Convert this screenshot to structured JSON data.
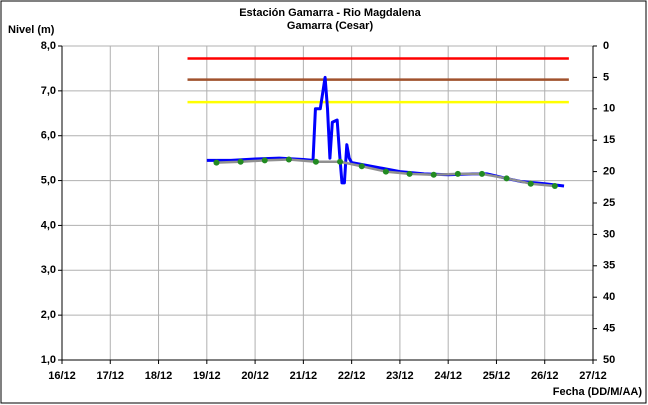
{
  "chart_data": {
    "type": "line",
    "title": "Estación Gamarra - Rio Magdalena",
    "subtitle": "Gamarra (Cesar)",
    "y_label": "Nivel (m)",
    "x_label": "Fecha (DD/M/AA)",
    "xlim": [
      16,
      27
    ],
    "xticks": [
      {
        "value": 16,
        "label": "16/12"
      },
      {
        "value": 17,
        "label": "17/12"
      },
      {
        "value": 18,
        "label": "18/12"
      },
      {
        "value": 19,
        "label": "19/12"
      },
      {
        "value": 20,
        "label": "20/12"
      },
      {
        "value": 21,
        "label": "21/12"
      },
      {
        "value": 22,
        "label": "22/12"
      },
      {
        "value": 23,
        "label": "23/12"
      },
      {
        "value": 24,
        "label": "24/12"
      },
      {
        "value": 25,
        "label": "25/12"
      },
      {
        "value": 26,
        "label": "26/12"
      },
      {
        "value": 27,
        "label": "27/12"
      }
    ],
    "ylim": [
      1,
      8
    ],
    "yticks": [
      {
        "value": 1,
        "label": "1,0"
      },
      {
        "value": 2,
        "label": "2,0"
      },
      {
        "value": 3,
        "label": "3,0"
      },
      {
        "value": 4,
        "label": "4,0"
      },
      {
        "value": 5,
        "label": "5,0"
      },
      {
        "value": 6,
        "label": "6,0"
      },
      {
        "value": 7,
        "label": "7,0"
      },
      {
        "value": 8,
        "label": "8,0"
      }
    ],
    "y2lim": [
      0,
      50
    ],
    "y2ticks": [
      0,
      5,
      10,
      15,
      20,
      25,
      30,
      35,
      40,
      45,
      50
    ],
    "grid": true,
    "series": [
      {
        "style": "line",
        "color": "#ff0000",
        "x": [
          18.6,
          26.5
        ],
        "values": [
          7.72,
          7.72
        ]
      },
      {
        "style": "line",
        "color": "#a0522d",
        "x": [
          18.6,
          26.5
        ],
        "values": [
          7.25,
          7.25
        ]
      },
      {
        "style": "line",
        "color": "#ffff00",
        "x": [
          18.6,
          26.5
        ],
        "values": [
          6.75,
          6.75
        ]
      },
      {
        "style": "line",
        "color": "#0000ff",
        "x": [
          19.0,
          19.5,
          20.0,
          20.5,
          21.0,
          21.2,
          21.25,
          21.35,
          21.45,
          21.5,
          21.55,
          21.6,
          21.7,
          21.75,
          21.8,
          21.85,
          21.9,
          21.95,
          22.0,
          22.5,
          23.0,
          23.5,
          24.0,
          24.5,
          24.8,
          25.2,
          25.5,
          26.0,
          26.4
        ],
        "values": [
          5.45,
          5.45,
          5.48,
          5.5,
          5.47,
          5.45,
          6.6,
          6.6,
          7.3,
          6.6,
          5.5,
          6.3,
          6.35,
          5.6,
          4.95,
          4.95,
          5.8,
          5.5,
          5.4,
          5.3,
          5.2,
          5.15,
          5.13,
          5.15,
          5.15,
          5.05,
          4.98,
          4.93,
          4.88
        ]
      },
      {
        "style": "line",
        "color": "#909090",
        "x": [
          19.2,
          19.7,
          20.2,
          20.7,
          21.26,
          21.76,
          22.21,
          22.71,
          23.2,
          23.7,
          24.2,
          24.7,
          25.21,
          25.71,
          26.21
        ],
        "values": [
          5.4,
          5.42,
          5.45,
          5.47,
          5.42,
          5.42,
          5.32,
          5.2,
          5.15,
          5.13,
          5.15,
          5.15,
          5.05,
          4.93,
          4.88
        ]
      },
      {
        "style": "points",
        "color": "#228b22",
        "x": [
          19.2,
          19.7,
          20.2,
          20.7,
          21.26,
          21.76,
          22.21,
          22.71,
          23.2,
          23.7,
          24.2,
          24.7,
          25.21,
          25.71,
          26.21
        ],
        "values": [
          5.4,
          5.42,
          5.45,
          5.47,
          5.42,
          5.42,
          5.32,
          5.2,
          5.15,
          5.13,
          5.15,
          5.15,
          5.05,
          4.93,
          4.88
        ]
      }
    ]
  }
}
